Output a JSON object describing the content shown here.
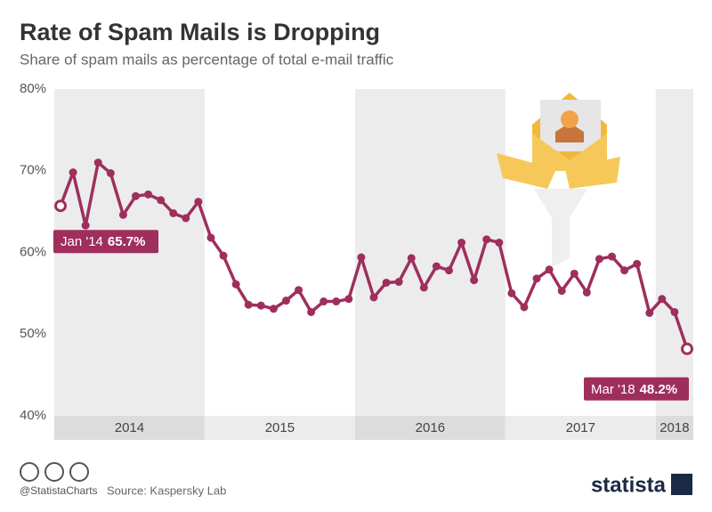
{
  "chart_data": {
    "type": "line",
    "title": "Rate of Spam Mails is Dropping",
    "subtitle": "Share of spam mails as percentage of total e-mail traffic",
    "categories": [
      "Jan '14",
      null,
      null,
      null,
      null,
      null,
      null,
      null,
      null,
      null,
      null,
      null,
      null,
      null,
      null,
      null,
      null,
      null,
      null,
      null,
      null,
      null,
      null,
      null,
      null,
      null,
      null,
      null,
      null,
      null,
      null,
      null,
      null,
      null,
      null,
      null,
      null,
      null,
      null,
      null,
      null,
      null,
      null,
      null,
      null,
      null,
      null,
      null,
      null,
      null,
      "Mar '18"
    ],
    "year_labels": [
      "2014",
      "2015",
      "2016",
      "2017",
      "2018"
    ],
    "series": [
      {
        "color": "#9e2f5d",
        "values": [
          65.7,
          69.8,
          63.3,
          71.0,
          69.7,
          64.6,
          66.9,
          67.1,
          66.4,
          64.8,
          64.2,
          66.2,
          61.8,
          59.6,
          56.1,
          53.6,
          53.5,
          53.1,
          54.1,
          55.4,
          52.7,
          54.0,
          54.0,
          54.3,
          59.4,
          54.5,
          56.3,
          56.4,
          59.3,
          55.7,
          58.3,
          57.8,
          61.2,
          56.6,
          61.6,
          61.2,
          55.0,
          53.3,
          56.8,
          57.9,
          55.3,
          57.4,
          55.1,
          59.2,
          59.5,
          57.8,
          58.6,
          52.6,
          54.3,
          52.7,
          48.2
        ],
        "value_labels": [
          "65.7%",
          null,
          null,
          null,
          null,
          null,
          null,
          null,
          null,
          null,
          null,
          null,
          null,
          null,
          null,
          null,
          null,
          null,
          null,
          null,
          null,
          null,
          null,
          null,
          null,
          null,
          null,
          null,
          null,
          null,
          null,
          null,
          null,
          null,
          null,
          null,
          null,
          null,
          null,
          null,
          null,
          null,
          null,
          null,
          null,
          null,
          null,
          null,
          null,
          null,
          "48.2%"
        ]
      }
    ],
    "ylim": [
      40,
      80
    ],
    "yticks": [
      {
        "value": 40,
        "label": "40%"
      },
      {
        "value": 50,
        "label": "50%"
      },
      {
        "value": 60,
        "label": "60%"
      },
      {
        "value": 70,
        "label": "70%"
      },
      {
        "value": 80,
        "label": "80%"
      }
    ],
    "band_color": "#ececec"
  },
  "footer": {
    "handle": "@StatistaCharts",
    "source": "Source: Kaspersky Lab",
    "brand": "statista"
  }
}
